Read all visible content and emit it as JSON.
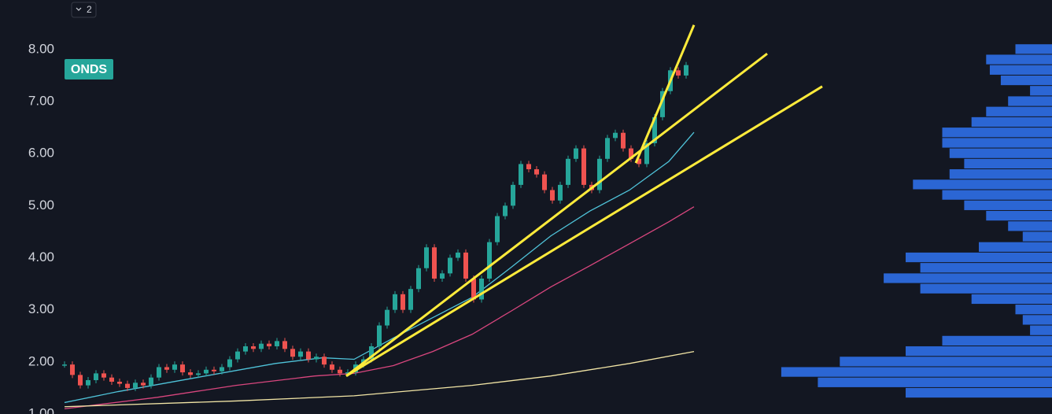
{
  "toolbar": {
    "collapse_count": "2"
  },
  "chart_data": {
    "type": "candlestick",
    "ticker": "ONDS",
    "xlim": [
      0,
      125.5
    ],
    "ylim": [
      1.0,
      8.95
    ],
    "yticks": [
      {
        "value": 1,
        "label": "1.00"
      },
      {
        "value": 2,
        "label": "2.00"
      },
      {
        "value": 3,
        "label": "3.00"
      },
      {
        "value": 4,
        "label": "4.00"
      },
      {
        "value": 5,
        "label": "5.00"
      },
      {
        "value": 6,
        "label": "6.00"
      },
      {
        "value": 7,
        "label": "7.00"
      },
      {
        "value": 8,
        "label": "8.00"
      }
    ],
    "up_color": "#26a69a",
    "down_color": "#ef5350",
    "close": [
      1.95,
      1.75,
      1.55,
      1.65,
      1.78,
      1.7,
      1.62,
      1.58,
      1.5,
      1.6,
      1.55,
      1.7,
      1.9,
      1.85,
      1.95,
      1.8,
      1.75,
      1.78,
      1.85,
      1.82,
      1.9,
      2.05,
      2.2,
      2.3,
      2.25,
      2.35,
      2.3,
      2.4,
      2.25,
      2.1,
      2.2,
      2.05,
      2.1,
      1.95,
      1.85,
      1.78,
      1.8,
      1.95,
      2.05,
      2.3,
      2.7,
      3.0,
      3.3,
      3.0,
      3.4,
      3.8,
      4.2,
      3.6,
      3.7,
      4.0,
      4.1,
      3.6,
      3.2,
      3.6,
      4.3,
      4.8,
      5.0,
      5.4,
      5.8,
      5.7,
      5.6,
      5.3,
      5.1,
      5.4,
      5.9,
      6.1,
      5.4,
      5.3,
      5.9,
      6.3,
      6.4,
      6.1,
      5.9,
      5.8,
      6.2,
      6.7,
      7.2,
      7.6,
      7.5,
      7.7
    ],
    "averages": [
      {
        "color": "#4fc3d9",
        "x": [
          0,
          6.8,
          16.8,
          26.8,
          32.8,
          36.8,
          41.8,
          46.8,
          51.8,
          56.8,
          61.8,
          66.8,
          71.8,
          76.8,
          80
        ],
        "values": [
          1.22,
          1.43,
          1.7,
          1.97,
          2.08,
          2.05,
          2.46,
          2.85,
          3.24,
          3.82,
          4.42,
          4.9,
          5.3,
          5.85,
          6.41
        ]
      },
      {
        "color": "#d9467e",
        "x": [
          0,
          11.8,
          21.8,
          31.8,
          36.8,
          41.8,
          46.8,
          51.8,
          56.8,
          61.8,
          66.8,
          71.8,
          76.8,
          80
        ],
        "values": [
          1.1,
          1.32,
          1.55,
          1.73,
          1.78,
          1.93,
          2.2,
          2.53,
          2.98,
          3.44,
          3.85,
          4.27,
          4.69,
          4.98
        ]
      },
      {
        "color": "#f3e6a6",
        "x": [
          0,
          21.8,
          36.8,
          51.8,
          61.8,
          71.8,
          80
        ],
        "values": [
          1.14,
          1.25,
          1.35,
          1.55,
          1.73,
          1.97,
          2.2
        ]
      }
    ],
    "trendlines": {
      "color": "#ffeb3b",
      "lines": [
        {
          "x": [
            35.8,
            89.3
          ],
          "values": [
            1.73,
            7.92
          ]
        },
        {
          "x": [
            35.8,
            96.3
          ],
          "values": [
            1.73,
            7.29
          ]
        },
        {
          "x": [
            72.6,
            80.0
          ],
          "values": [
            5.82,
            8.47
          ]
        }
      ]
    },
    "profile": {
      "color": "#2f6fe8",
      "xlim": [
        0,
        400
      ],
      "step": 0.2,
      "prices": [
        8.0,
        7.8,
        7.6,
        7.4,
        7.2,
        7.0,
        6.8,
        6.6,
        6.4,
        6.2,
        6.0,
        5.8,
        5.6,
        5.4,
        5.2,
        5.0,
        4.8,
        4.6,
        4.4,
        4.2,
        4.0,
        3.8,
        3.6,
        3.4,
        3.2,
        3.0,
        2.8,
        2.6,
        2.4,
        2.2,
        2.0,
        1.8,
        1.6,
        1.4
      ],
      "values": [
        50,
        90,
        85,
        70,
        30,
        60,
        90,
        110,
        150,
        150,
        140,
        120,
        140,
        190,
        150,
        120,
        90,
        60,
        40,
        100,
        200,
        180,
        230,
        180,
        110,
        50,
        40,
        30,
        150,
        200,
        290,
        370,
        320,
        200
      ]
    }
  }
}
